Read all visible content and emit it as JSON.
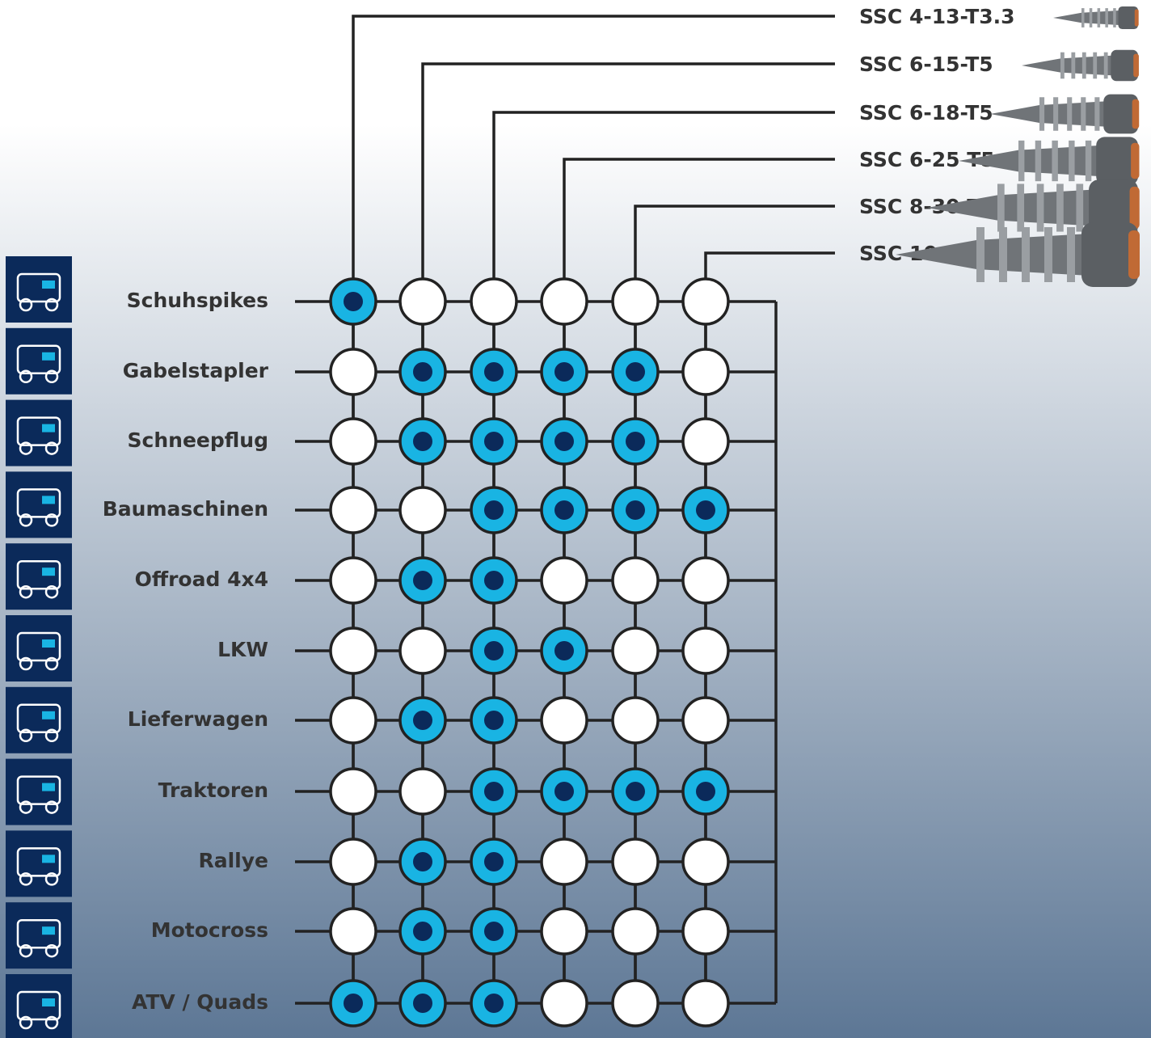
{
  "products": [
    "SSC 4-13-T3.3",
    "SSC 6-15-T5",
    "SSC 6-18-T5",
    "SSC 6-25 T5",
    "SSC 8-30 T6",
    "SSC 10-35 T8"
  ],
  "applications": [
    "Schuhspikes",
    "Gabelstapler",
    "Schneepflug",
    "Baumaschinen",
    "Offroad 4x4",
    "LKW",
    "Lieferwagen",
    "Traktoren",
    "Rallye",
    "Motocross",
    "ATV / Quads"
  ],
  "matrix": [
    [
      1,
      0,
      0,
      0,
      0,
      0
    ],
    [
      0,
      1,
      1,
      1,
      1,
      0
    ],
    [
      0,
      1,
      1,
      1,
      1,
      0
    ],
    [
      0,
      0,
      1,
      1,
      1,
      1
    ],
    [
      0,
      1,
      1,
      0,
      0,
      0
    ],
    [
      0,
      0,
      1,
      1,
      0,
      0
    ],
    [
      0,
      1,
      1,
      0,
      0,
      0
    ],
    [
      0,
      0,
      1,
      1,
      1,
      1
    ],
    [
      0,
      1,
      1,
      0,
      0,
      0
    ],
    [
      0,
      1,
      1,
      0,
      0,
      0
    ],
    [
      1,
      1,
      1,
      0,
      0,
      0
    ]
  ]
}
